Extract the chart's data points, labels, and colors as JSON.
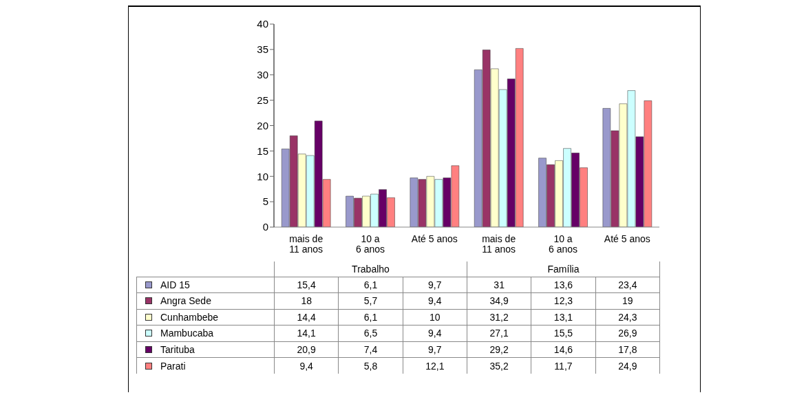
{
  "chart_data": {
    "type": "bar",
    "categories": [
      "mais de 11 anos",
      "10 a 6 anos",
      "Até 5 anos",
      "mais de 11 anos",
      "10 a 6 anos",
      "Até 5 anos"
    ],
    "annotations": [
      "Trabalho",
      "Família"
    ],
    "series": [
      {
        "name": "AID 15",
        "color": "#9999cc",
        "values": [
          15.4,
          6.1,
          9.7,
          31,
          13.6,
          23.4
        ],
        "value_labels": [
          "15,4",
          "6,1",
          "9,7",
          "31",
          "13,6",
          "23,4"
        ]
      },
      {
        "name": "Angra Sede",
        "color": "#993366",
        "values": [
          18,
          5.7,
          9.4,
          34.9,
          12.3,
          19
        ],
        "value_labels": [
          "18",
          "5,7",
          "9,4",
          "34,9",
          "12,3",
          "19"
        ]
      },
      {
        "name": "Cunhambebe",
        "color": "#ffffcc",
        "values": [
          14.4,
          6.1,
          10,
          31.2,
          13.1,
          24.3
        ],
        "value_labels": [
          "14,4",
          "6,1",
          "10",
          "31,2",
          "13,1",
          "24,3"
        ]
      },
      {
        "name": "Mambucaba",
        "color": "#ccffff",
        "values": [
          14.1,
          6.5,
          9.4,
          27.1,
          15.5,
          26.9
        ],
        "value_labels": [
          "14,1",
          "6,5",
          "9,4",
          "27,1",
          "15,5",
          "26,9"
        ]
      },
      {
        "name": "Tarituba",
        "color": "#660066",
        "values": [
          20.9,
          7.4,
          9.7,
          29.2,
          14.6,
          17.8
        ],
        "value_labels": [
          "20,9",
          "7,4",
          "9,7",
          "29,2",
          "14,6",
          "17,8"
        ]
      },
      {
        "name": "Parati",
        "color": "#ff8080",
        "values": [
          9.4,
          5.8,
          12.1,
          35.2,
          11.7,
          24.9
        ],
        "value_labels": [
          "9,4",
          "5,8",
          "12,1",
          "35,2",
          "11,7",
          "24,9"
        ]
      }
    ],
    "ylim": [
      0,
      40
    ],
    "yticks": [
      0,
      5,
      10,
      15,
      20,
      25,
      30,
      35,
      40
    ],
    "grid": false,
    "legend": "bottom"
  }
}
